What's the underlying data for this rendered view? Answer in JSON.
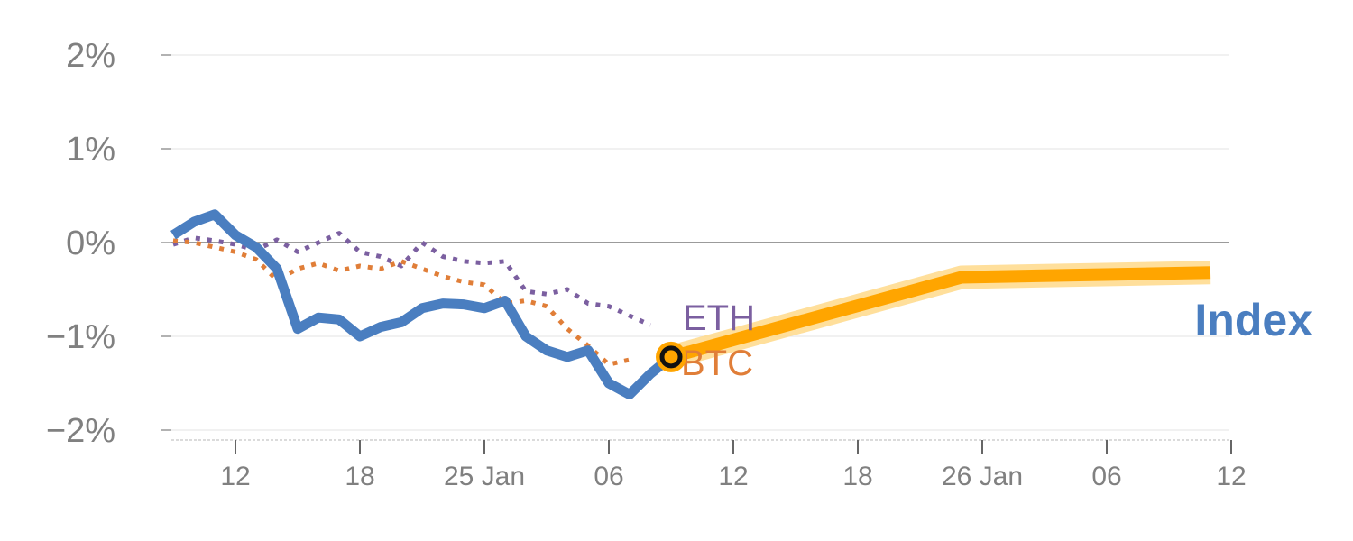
{
  "chart_data": {
    "type": "line",
    "title": "",
    "xlabel": "",
    "ylabel": "",
    "ylim": [
      -2.1,
      2.0
    ],
    "y_ticks": [
      {
        "value": 2,
        "label": "2%"
      },
      {
        "value": 1,
        "label": "1%"
      },
      {
        "value": 0,
        "label": "0%"
      },
      {
        "value": -1,
        "label": "−1%"
      },
      {
        "value": -2,
        "label": "−2%"
      }
    ],
    "x_ticks": [
      {
        "t": 2,
        "label": "12"
      },
      {
        "t": 8,
        "label": "18"
      },
      {
        "t": 14,
        "label": "25 Jan"
      },
      {
        "t": 20,
        "label": "06"
      },
      {
        "t": 26,
        "label": "12"
      },
      {
        "t": 32,
        "label": "18"
      },
      {
        "t": 38,
        "label": "26 Jan"
      },
      {
        "t": 44,
        "label": "06"
      },
      {
        "t": 50,
        "label": "12"
      }
    ],
    "series": [
      {
        "name": "ETH",
        "style": "dotted",
        "color": "#7b5fa0",
        "points": [
          [
            -1,
            -0.02
          ],
          [
            0,
            0.05
          ],
          [
            1,
            0.02
          ],
          [
            2,
            -0.02
          ],
          [
            3,
            -0.08
          ],
          [
            4,
            0.03
          ],
          [
            5,
            -0.1
          ],
          [
            6,
            0.0
          ],
          [
            7,
            0.1
          ],
          [
            8,
            -0.1
          ],
          [
            9,
            -0.15
          ],
          [
            10,
            -0.25
          ],
          [
            11,
            0.0
          ],
          [
            12,
            -0.15
          ],
          [
            13,
            -0.2
          ],
          [
            14,
            -0.22
          ],
          [
            15,
            -0.2
          ],
          [
            16,
            -0.52
          ],
          [
            17,
            -0.55
          ],
          [
            18,
            -0.5
          ],
          [
            19,
            -0.65
          ],
          [
            20,
            -0.68
          ],
          [
            21,
            -0.78
          ],
          [
            22,
            -0.88
          ]
        ]
      },
      {
        "name": "BTC",
        "style": "dotted",
        "color": "#e07e38",
        "points": [
          [
            -1,
            0.02
          ],
          [
            0,
            0.0
          ],
          [
            1,
            -0.05
          ],
          [
            2,
            -0.1
          ],
          [
            3,
            -0.18
          ],
          [
            4,
            -0.4
          ],
          [
            5,
            -0.28
          ],
          [
            6,
            -0.22
          ],
          [
            7,
            -0.3
          ],
          [
            8,
            -0.25
          ],
          [
            9,
            -0.28
          ],
          [
            10,
            -0.2
          ],
          [
            11,
            -0.28
          ],
          [
            12,
            -0.36
          ],
          [
            13,
            -0.42
          ],
          [
            14,
            -0.45
          ],
          [
            15,
            -0.65
          ],
          [
            16,
            -0.62
          ],
          [
            17,
            -0.68
          ],
          [
            18,
            -0.92
          ],
          [
            19,
            -1.1
          ],
          [
            20,
            -1.3
          ],
          [
            21,
            -1.25
          ]
        ]
      },
      {
        "name": "Index",
        "style": "solid",
        "color": "#4a7ec0",
        "points": [
          [
            -1,
            0.08
          ],
          [
            0,
            0.22
          ],
          [
            1,
            0.3
          ],
          [
            2,
            0.08
          ],
          [
            3,
            -0.05
          ],
          [
            4,
            -0.28
          ],
          [
            5,
            -0.92
          ],
          [
            6,
            -0.8
          ],
          [
            7,
            -0.82
          ],
          [
            8,
            -1.0
          ],
          [
            9,
            -0.9
          ],
          [
            10,
            -0.85
          ],
          [
            11,
            -0.7
          ],
          [
            12,
            -0.65
          ],
          [
            13,
            -0.66
          ],
          [
            14,
            -0.7
          ],
          [
            15,
            -0.62
          ],
          [
            16,
            -1.0
          ],
          [
            17,
            -1.15
          ],
          [
            18,
            -1.22
          ],
          [
            19,
            -1.15
          ],
          [
            20,
            -1.5
          ],
          [
            21,
            -1.62
          ],
          [
            22,
            -1.4
          ],
          [
            23,
            -1.22
          ]
        ]
      },
      {
        "name": "Index",
        "style": "forecast",
        "color": "#ffa500",
        "points": [
          [
            23,
            -1.22
          ],
          [
            37,
            -0.37
          ],
          [
            49,
            -0.32
          ]
        ]
      }
    ],
    "marker": {
      "t": 23,
      "value": -1.22
    },
    "labels": {
      "eth": "ETH",
      "btc": "BTC",
      "index": "Index"
    },
    "grid": true,
    "legend": "direct labels"
  }
}
